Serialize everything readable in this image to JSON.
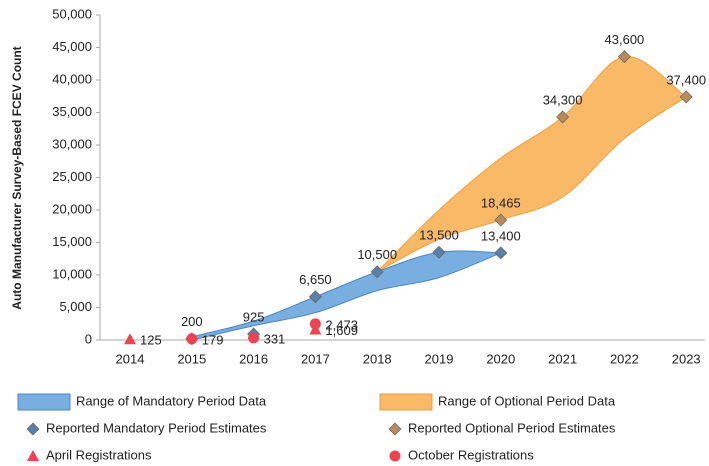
{
  "chart_data": {
    "type": "combo",
    "y_label": "Auto Manufacturer Survey-Based FCEV Count",
    "categories": [
      "2014",
      "2015",
      "2016",
      "2017",
      "2018",
      "2019",
      "2020",
      "2021",
      "2022",
      "2023"
    ],
    "ylim": [
      0,
      50000
    ],
    "yticks": [
      0,
      {
        "value": 5000,
        "label": "5,000"
      },
      {
        "value": 10000,
        "label": "10,000"
      },
      {
        "value": 15000,
        "label": "15,000"
      },
      {
        "value": 20000,
        "label": "20,000"
      },
      {
        "value": 25000,
        "label": "25,000"
      },
      {
        "value": 30000,
        "label": "30,000"
      },
      {
        "value": 35000,
        "label": "35,000"
      },
      {
        "value": 40000,
        "label": "40,000"
      },
      {
        "value": 45000,
        "label": "45,000"
      },
      {
        "value": 50000,
        "label": "50,000"
      }
    ],
    "series": [
      {
        "name": "Range of Mandatory Period Data",
        "type": "range",
        "color": "#79aee0",
        "stroke": "#4a86c5",
        "high": [
          null,
          500,
          2900,
          6650,
          10500,
          13500,
          13400,
          null,
          null,
          null
        ],
        "low": [
          null,
          0,
          2200,
          4200,
          7600,
          9600,
          13400,
          null,
          null,
          null
        ]
      },
      {
        "name": "Range of Optional Period Data",
        "type": "range",
        "color": "#f9b967",
        "stroke": "#f0a040",
        "high": [
          null,
          null,
          null,
          null,
          10500,
          20000,
          28000,
          34300,
          43600,
          37400
        ],
        "low": [
          null,
          null,
          null,
          null,
          10500,
          15500,
          18465,
          22000,
          31000,
          37400
        ]
      },
      {
        "name": "Reported Mandatory Period Estimates",
        "type": "diamond",
        "color": "#5b7fa6",
        "values": [
          null,
          200,
          925,
          6650,
          10500,
          13500,
          13400,
          null,
          null,
          null
        ],
        "value_labels": [
          null,
          "200",
          "925",
          "6,650",
          "10,500",
          "13,500",
          "13,400",
          null,
          null,
          null
        ]
      },
      {
        "name": "Reported Optional Period Estimates",
        "type": "diamond",
        "color": "#b98a5c",
        "values": [
          null,
          null,
          null,
          null,
          null,
          null,
          18465,
          34300,
          43600,
          37400
        ],
        "value_labels": [
          null,
          null,
          null,
          null,
          null,
          null,
          "18,465",
          "34,300",
          "43,600",
          "37,400"
        ]
      },
      {
        "name": "April Registrations",
        "type": "triangle",
        "color": "#f04352",
        "values": [
          125,
          null,
          null,
          1609,
          null,
          null,
          null,
          null,
          null,
          null
        ],
        "value_labels": [
          "125",
          null,
          null,
          "1,609",
          null,
          null,
          null,
          null,
          null,
          null
        ]
      },
      {
        "name": "October Registrations",
        "type": "circle",
        "color": "#f04352",
        "values": [
          null,
          179,
          331,
          2473,
          null,
          null,
          null,
          null,
          null,
          null
        ],
        "value_labels": [
          null,
          "179",
          "331",
          "2,473",
          null,
          null,
          null,
          null,
          null,
          null
        ]
      }
    ]
  }
}
